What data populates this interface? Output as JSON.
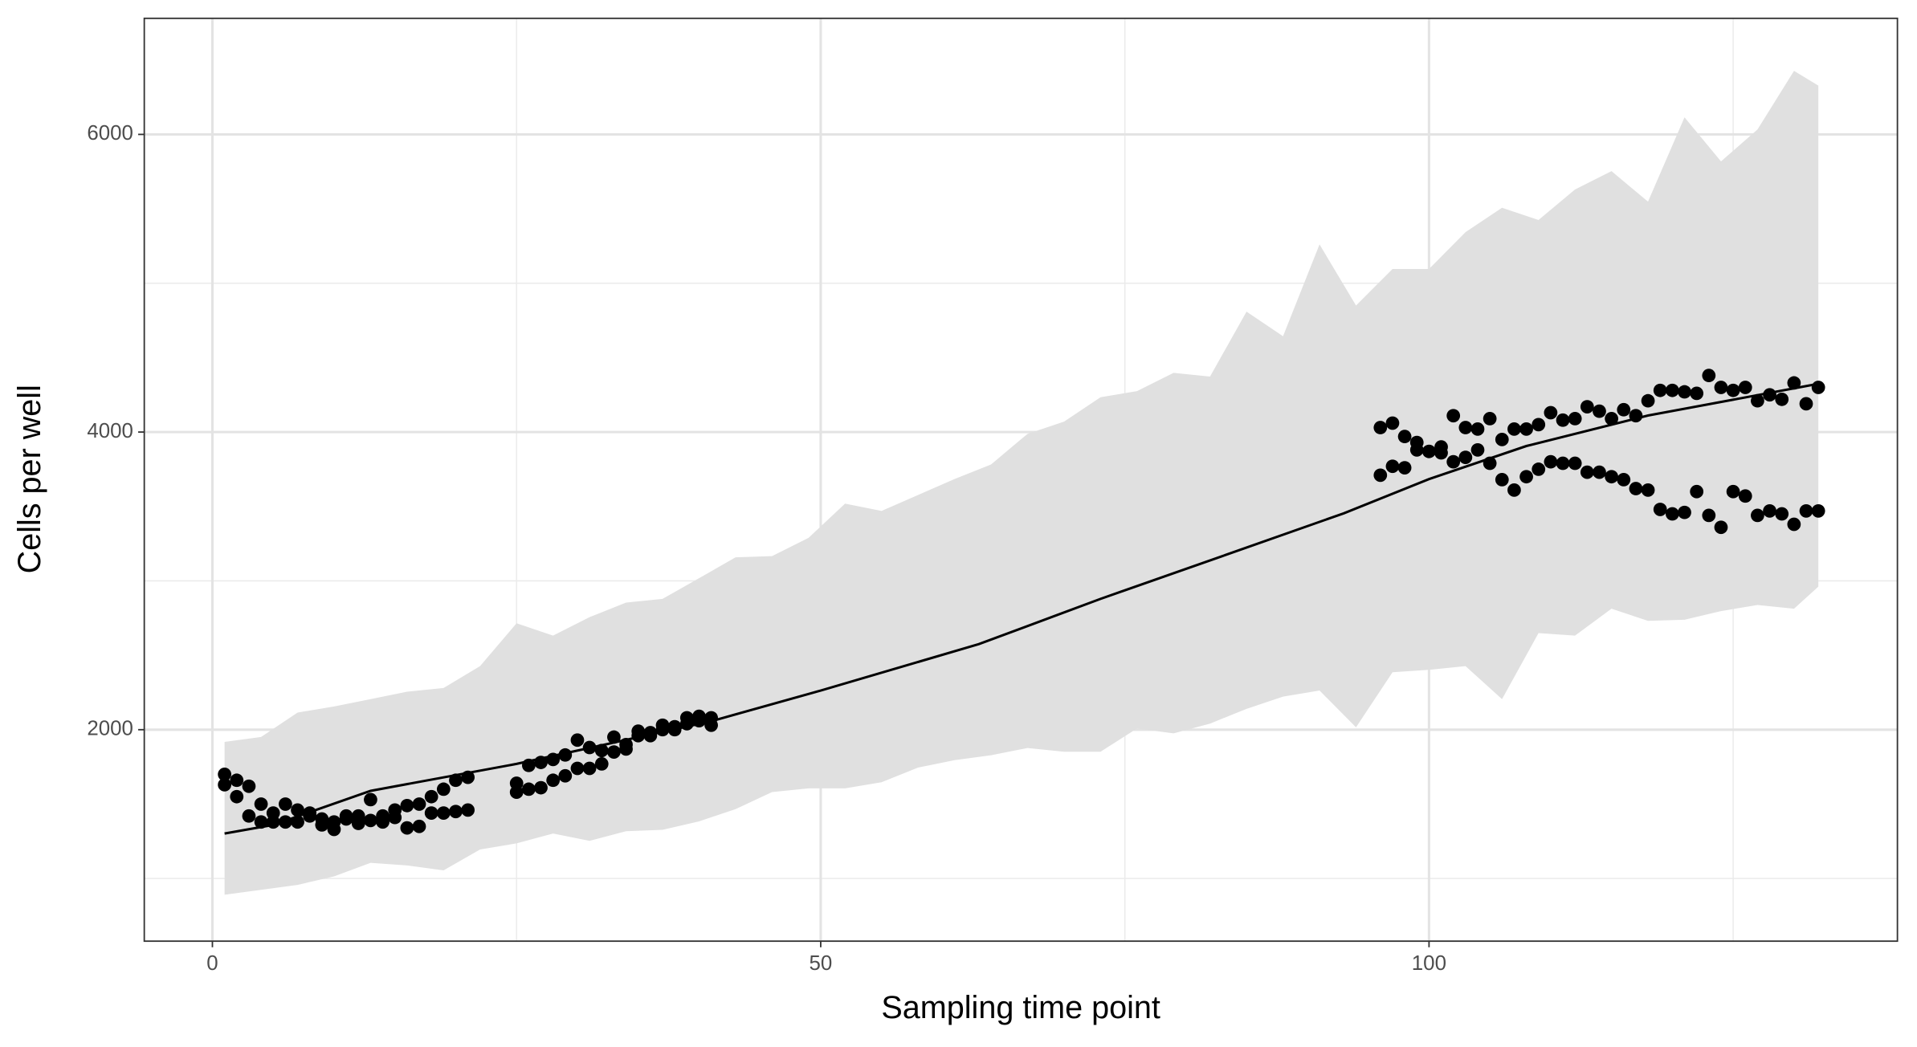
{
  "chart_data": {
    "type": "scatter",
    "x_label": "Sampling time point",
    "y_label": "Cells per well",
    "xlim": [
      -5.6,
      138.5
    ],
    "ylim": [
      579,
      6780
    ],
    "xticks": [
      0,
      50,
      100
    ],
    "yticks": [
      2000,
      4000,
      6000
    ],
    "xminor": [
      25,
      75,
      125
    ],
    "yminor": [
      1000,
      3000,
      5000
    ],
    "grid": true,
    "x": [
      1,
      2,
      3,
      4,
      5,
      6,
      7,
      8,
      9,
      10,
      11,
      12,
      13,
      14,
      15,
      16,
      17,
      18,
      19,
      20,
      21,
      25,
      26,
      27,
      28,
      29,
      30,
      31,
      32,
      33,
      34,
      35,
      36,
      37,
      38,
      39,
      40,
      41,
      96,
      97,
      98,
      99,
      100,
      101,
      102,
      103,
      104,
      105,
      106,
      107,
      108,
      109,
      110,
      111,
      112,
      113,
      114,
      115,
      116,
      117,
      118,
      119,
      120,
      121,
      122,
      123,
      124,
      125,
      126,
      127,
      128,
      129,
      130,
      131,
      132
    ],
    "series": [
      {
        "color": "#000000",
        "values": [
          1700,
          1660,
          1620,
          1500,
          1440,
          1500,
          1460,
          1440,
          1400,
          1380,
          1420,
          1420,
          1530,
          1420,
          1460,
          1490,
          1500,
          1550,
          1600,
          1660,
          1680,
          1640,
          1760,
          1780,
          1800,
          1830,
          1930,
          1880,
          1860,
          1950,
          1900,
          1990,
          1980,
          2030,
          2020,
          2080,
          2090,
          2080,
          4030,
          4060,
          3970,
          3930,
          3870,
          3900,
          4110,
          4030,
          4020,
          4090,
          3950,
          4020,
          4020,
          4050,
          4130,
          4080,
          4090,
          4170,
          4140,
          4090,
          4150,
          4110,
          4210,
          4280,
          4280,
          4270,
          4260,
          4380,
          4300,
          4280,
          4300,
          4210,
          4250,
          4220,
          4330,
          4190,
          4300
        ]
      },
      {
        "color": "#000000",
        "values": [
          1630,
          1550,
          1420,
          1380,
          1380,
          1380,
          1380,
          1420,
          1360,
          1330,
          1400,
          1370,
          1390,
          1380,
          1410,
          1340,
          1350,
          1440,
          1440,
          1450,
          1460,
          1580,
          1600,
          1610,
          1660,
          1690,
          1740,
          1740,
          1770,
          1850,
          1870,
          1960,
          1960,
          2000,
          2000,
          2040,
          2060,
          2030,
          3710,
          3770,
          3760,
          3880,
          3870,
          3860,
          3800,
          3830,
          3880,
          3790,
          3680,
          3610,
          3700,
          3750,
          3800,
          3790,
          3790,
          3730,
          3730,
          3700,
          3680,
          3620,
          3610,
          3480,
          3450,
          3460,
          3600,
          3440,
          3360,
          3600,
          3570,
          3440,
          3470,
          3450,
          3380,
          3470,
          3470
        ]
      }
    ],
    "fit": {
      "color": "#000000",
      "x": [
        1,
        5,
        13,
        25,
        41,
        50,
        63,
        73,
        83,
        93,
        100,
        108,
        118,
        132
      ],
      "values": [
        1302,
        1360,
        1589,
        1770,
        2057,
        2263,
        2575,
        2879,
        3166,
        3454,
        3684,
        3906,
        4111,
        4324
      ]
    },
    "ribbon": {
      "color": "#e0e0e0",
      "x": [
        1,
        4,
        7,
        10,
        13,
        16,
        19,
        22,
        25,
        28,
        31,
        34,
        37,
        40,
        43,
        46,
        49,
        52,
        55,
        58,
        61,
        64,
        67,
        70,
        73,
        76,
        79,
        82,
        85,
        88,
        91,
        94,
        97,
        100,
        103,
        106,
        109,
        112,
        115,
        118,
        121,
        124,
        127,
        130,
        132
      ],
      "upper": [
        1918,
        1951,
        2115,
        2156,
        2205,
        2255,
        2280,
        2427,
        2715,
        2632,
        2756,
        2854,
        2879,
        3018,
        3158,
        3166,
        3289,
        3519,
        3470,
        3577,
        3684,
        3782,
        3988,
        4070,
        4234,
        4275,
        4398,
        4373,
        4809,
        4644,
        5261,
        4850,
        5096,
        5096,
        5343,
        5507,
        5425,
        5630,
        5753,
        5548,
        6115,
        5819,
        6033,
        6427,
        6328
      ],
      "lower": [
        891,
        924,
        957,
        1014,
        1105,
        1088,
        1055,
        1195,
        1236,
        1302,
        1253,
        1318,
        1327,
        1384,
        1466,
        1581,
        1606,
        1606,
        1647,
        1745,
        1795,
        1828,
        1877,
        1852,
        1852,
        2008,
        1975,
        2041,
        2140,
        2222,
        2263,
        2016,
        2386,
        2402,
        2427,
        2205,
        2649,
        2632,
        2813,
        2731,
        2739,
        2797,
        2838,
        2813,
        2961
      ]
    }
  }
}
